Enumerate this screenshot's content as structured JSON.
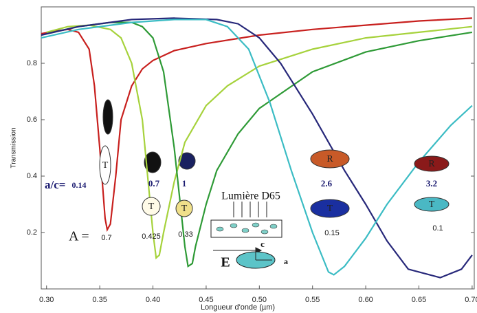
{
  "chart_data": {
    "type": "line",
    "xlabel": "Longueur d'onde (µm)",
    "ylabel": "Transmission",
    "xlim": [
      0.295,
      0.702
    ],
    "ylim": [
      0,
      1
    ],
    "xticks": [
      {
        "value": 0.3,
        "label": "0.30"
      },
      0.35,
      {
        "value": 0.4,
        "label": "0.40"
      },
      0.45,
      {
        "value": 0.5,
        "label": "0.50"
      },
      0.55,
      {
        "value": 0.6,
        "label": "0.60"
      },
      0.65,
      {
        "value": 0.7,
        "label": "0.70"
      }
    ],
    "yticks": [
      0.2,
      0.4,
      0.6,
      0.8
    ],
    "series": [
      {
        "color": "#c8201e",
        "x": [
          0.295,
          0.31,
          0.32,
          0.33,
          0.34,
          0.345,
          0.35,
          0.355,
          0.357,
          0.36,
          0.365,
          0.37,
          0.38,
          0.39,
          0.4,
          0.42,
          0.45,
          0.5,
          0.55,
          0.6,
          0.65,
          0.7
        ],
        "values": [
          0.905,
          0.915,
          0.92,
          0.91,
          0.85,
          0.72,
          0.5,
          0.25,
          0.21,
          0.23,
          0.4,
          0.6,
          0.72,
          0.78,
          0.81,
          0.845,
          0.87,
          0.9,
          0.92,
          0.935,
          0.95,
          0.96
        ]
      },
      {
        "color": "#a6d23c",
        "x": [
          0.3,
          0.32,
          0.34,
          0.36,
          0.37,
          0.38,
          0.39,
          0.395,
          0.4,
          0.403,
          0.406,
          0.41,
          0.42,
          0.43,
          0.45,
          0.47,
          0.5,
          0.55,
          0.6,
          0.65,
          0.7
        ],
        "values": [
          0.91,
          0.93,
          0.935,
          0.92,
          0.89,
          0.8,
          0.6,
          0.4,
          0.2,
          0.11,
          0.12,
          0.2,
          0.38,
          0.52,
          0.65,
          0.72,
          0.79,
          0.85,
          0.89,
          0.91,
          0.93
        ]
      },
      {
        "color": "#2e9a36",
        "x": [
          0.3,
          0.33,
          0.36,
          0.38,
          0.39,
          0.4,
          0.41,
          0.42,
          0.43,
          0.433,
          0.437,
          0.44,
          0.45,
          0.46,
          0.48,
          0.5,
          0.55,
          0.6,
          0.65,
          0.7
        ],
        "values": [
          0.905,
          0.93,
          0.945,
          0.945,
          0.93,
          0.89,
          0.77,
          0.5,
          0.15,
          0.08,
          0.09,
          0.15,
          0.3,
          0.42,
          0.55,
          0.64,
          0.77,
          0.84,
          0.88,
          0.91
        ]
      },
      {
        "color": "#27287a",
        "x": [
          0.295,
          0.33,
          0.38,
          0.42,
          0.46,
          0.48,
          0.5,
          0.52,
          0.55,
          0.58,
          0.6,
          0.62,
          0.64,
          0.67,
          0.69,
          0.7
        ],
        "values": [
          0.9,
          0.93,
          0.955,
          0.96,
          0.955,
          0.94,
          0.89,
          0.8,
          0.62,
          0.42,
          0.3,
          0.17,
          0.07,
          0.04,
          0.07,
          0.12
        ]
      },
      {
        "color": "#3bbcc4",
        "x": [
          0.295,
          0.33,
          0.38,
          0.42,
          0.45,
          0.47,
          0.49,
          0.51,
          0.53,
          0.55,
          0.565,
          0.57,
          0.58,
          0.6,
          0.62,
          0.65,
          0.68,
          0.7
        ],
        "values": [
          0.89,
          0.92,
          0.945,
          0.955,
          0.955,
          0.93,
          0.85,
          0.66,
          0.42,
          0.2,
          0.06,
          0.05,
          0.08,
          0.18,
          0.3,
          0.45,
          0.58,
          0.65
        ]
      }
    ],
    "annotations": [
      "a/c=",
      "0.14",
      "0.7",
      "1",
      "2.6",
      "3.2",
      "A =",
      "0.7",
      "0.425",
      "0.33",
      "0.15",
      "0.1",
      "Lumière D65",
      "c",
      "E",
      "a"
    ],
    "particle_labels": [
      "T",
      "T",
      "T",
      "R",
      "T",
      "R",
      "T"
    ]
  }
}
